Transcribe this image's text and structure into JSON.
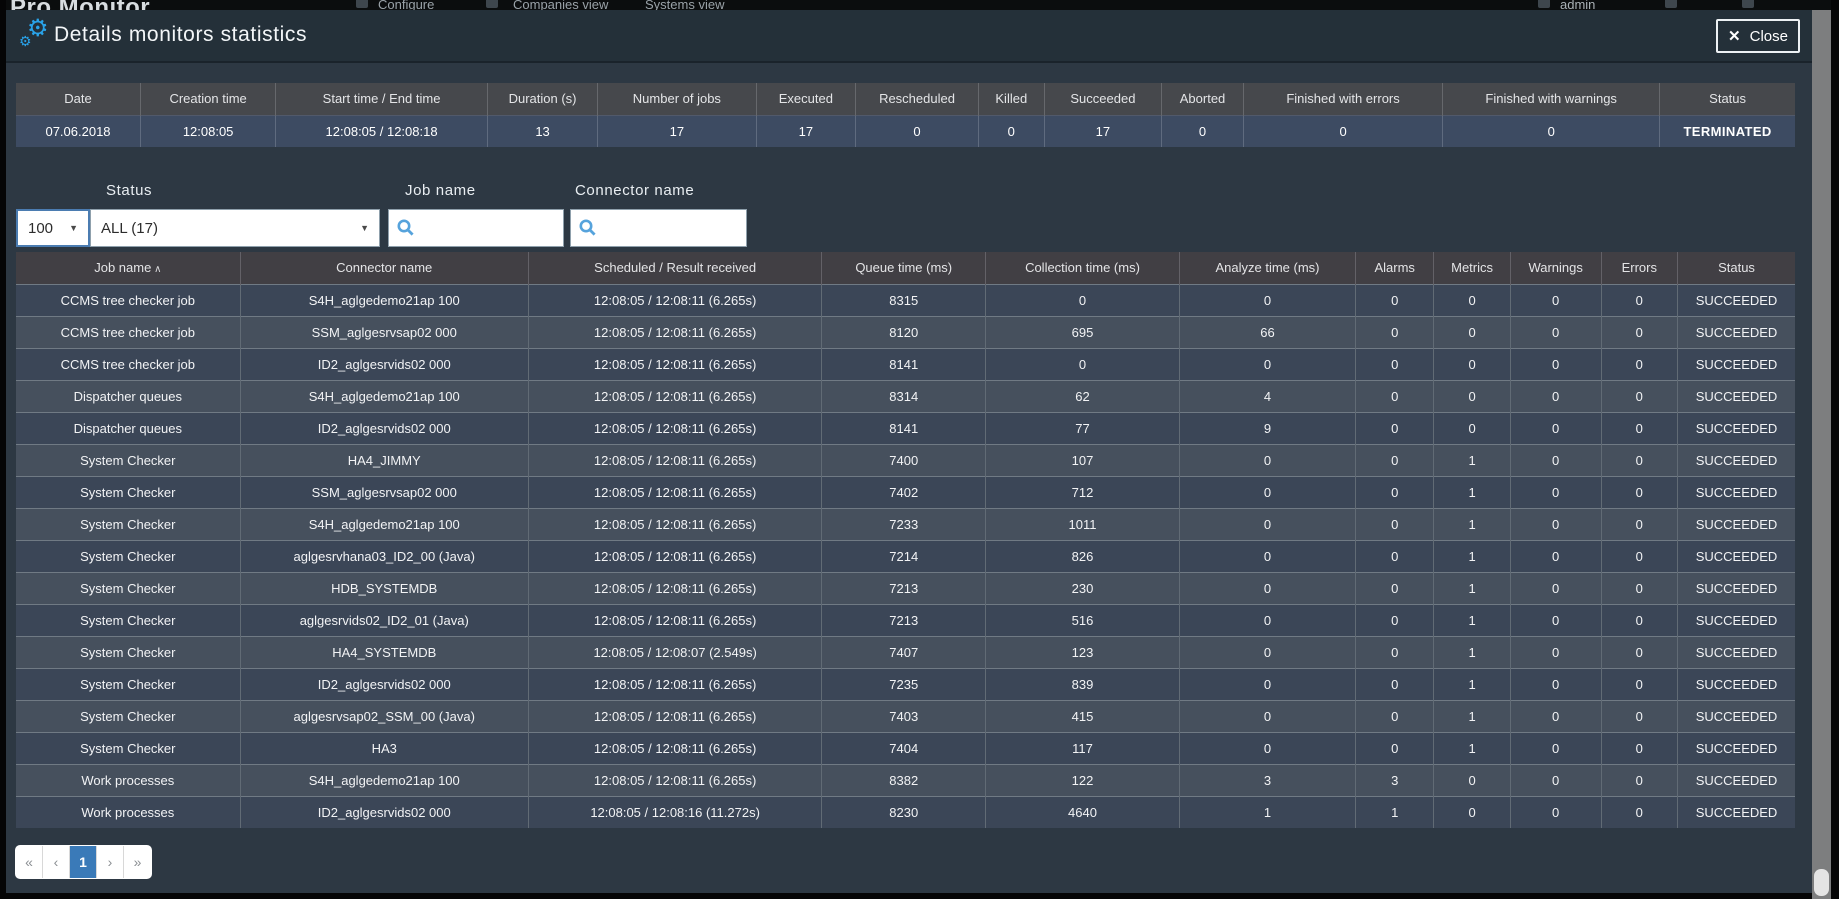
{
  "backdrop": {
    "brand": "Pro.Monitor",
    "nav": {
      "configure": "Configure",
      "companies_view": "Companies view",
      "systems_view": "Systems view"
    },
    "user": "admin"
  },
  "modal": {
    "title": "Details monitors statistics",
    "close_label": "Close",
    "close_icon": "✕"
  },
  "summary_table": {
    "columns": [
      "Date",
      "Creation time",
      "Start time / End time",
      "Duration (s)",
      "Number of jobs",
      "Executed",
      "Rescheduled",
      "Killed",
      "Succeeded",
      "Aborted",
      "Finished with errors",
      "Finished with warnings",
      "Status"
    ],
    "rows": [
      [
        "07.06.2018",
        "12:08:05",
        "12:08:05 / 12:08:18",
        "13",
        "17",
        "17",
        "0",
        "0",
        "17",
        "0",
        "0",
        "0",
        "TERMINATED"
      ]
    ]
  },
  "filters": {
    "page_size_value": "100",
    "status_label": "Status",
    "status_value": "ALL (17)",
    "job_name_label": "Job name",
    "job_name_value": "",
    "connector_name_label": "Connector name",
    "connector_name_value": ""
  },
  "jobs_table": {
    "sort_indicator": "∧",
    "columns": [
      "Job name",
      "Connector name",
      "Scheduled / Result received",
      "Queue time (ms)",
      "Collection time (ms)",
      "Analyze time (ms)",
      "Alarms",
      "Metrics",
      "Warnings",
      "Errors",
      "Status"
    ],
    "rows": [
      [
        "CCMS tree checker job",
        "S4H_aglgedemo21ap 100",
        "12:08:05 / 12:08:11 (6.265s)",
        "8315",
        "0",
        "0",
        "0",
        "0",
        "0",
        "0",
        "SUCCEEDED"
      ],
      [
        "CCMS tree checker job",
        "SSM_aglgesrvsap02 000",
        "12:08:05 / 12:08:11 (6.265s)",
        "8120",
        "695",
        "66",
        "0",
        "0",
        "0",
        "0",
        "SUCCEEDED"
      ],
      [
        "CCMS tree checker job",
        "ID2_aglgesrvids02 000",
        "12:08:05 / 12:08:11 (6.265s)",
        "8141",
        "0",
        "0",
        "0",
        "0",
        "0",
        "0",
        "SUCCEEDED"
      ],
      [
        "Dispatcher queues",
        "S4H_aglgedemo21ap 100",
        "12:08:05 / 12:08:11 (6.265s)",
        "8314",
        "62",
        "4",
        "0",
        "0",
        "0",
        "0",
        "SUCCEEDED"
      ],
      [
        "Dispatcher queues",
        "ID2_aglgesrvids02 000",
        "12:08:05 / 12:08:11 (6.265s)",
        "8141",
        "77",
        "9",
        "0",
        "0",
        "0",
        "0",
        "SUCCEEDED"
      ],
      [
        "System Checker",
        "HA4_JIMMY",
        "12:08:05 / 12:08:11 (6.265s)",
        "7400",
        "107",
        "0",
        "0",
        "1",
        "0",
        "0",
        "SUCCEEDED"
      ],
      [
        "System Checker",
        "SSM_aglgesrvsap02 000",
        "12:08:05 / 12:08:11 (6.265s)",
        "7402",
        "712",
        "0",
        "0",
        "1",
        "0",
        "0",
        "SUCCEEDED"
      ],
      [
        "System Checker",
        "S4H_aglgedemo21ap 100",
        "12:08:05 / 12:08:11 (6.265s)",
        "7233",
        "1011",
        "0",
        "0",
        "1",
        "0",
        "0",
        "SUCCEEDED"
      ],
      [
        "System Checker",
        "aglgesrvhana03_ID2_00 (Java)",
        "12:08:05 / 12:08:11 (6.265s)",
        "7214",
        "826",
        "0",
        "0",
        "1",
        "0",
        "0",
        "SUCCEEDED"
      ],
      [
        "System Checker",
        "HDB_SYSTEMDB",
        "12:08:05 / 12:08:11 (6.265s)",
        "7213",
        "230",
        "0",
        "0",
        "1",
        "0",
        "0",
        "SUCCEEDED"
      ],
      [
        "System Checker",
        "aglgesrvids02_ID2_01 (Java)",
        "12:08:05 / 12:08:11 (6.265s)",
        "7213",
        "516",
        "0",
        "0",
        "1",
        "0",
        "0",
        "SUCCEEDED"
      ],
      [
        "System Checker",
        "HA4_SYSTEMDB",
        "12:08:05 / 12:08:07 (2.549s)",
        "7407",
        "123",
        "0",
        "0",
        "1",
        "0",
        "0",
        "SUCCEEDED"
      ],
      [
        "System Checker",
        "ID2_aglgesrvids02 000",
        "12:08:05 / 12:08:11 (6.265s)",
        "7235",
        "839",
        "0",
        "0",
        "1",
        "0",
        "0",
        "SUCCEEDED"
      ],
      [
        "System Checker",
        "aglgesrvsap02_SSM_00 (Java)",
        "12:08:05 / 12:08:11 (6.265s)",
        "7403",
        "415",
        "0",
        "0",
        "1",
        "0",
        "0",
        "SUCCEEDED"
      ],
      [
        "System Checker",
        "HA3",
        "12:08:05 / 12:08:11 (6.265s)",
        "7404",
        "117",
        "0",
        "0",
        "1",
        "0",
        "0",
        "SUCCEEDED"
      ],
      [
        "Work processes",
        "S4H_aglgedemo21ap 100",
        "12:08:05 / 12:08:11 (6.265s)",
        "8382",
        "122",
        "3",
        "3",
        "0",
        "0",
        "0",
        "SUCCEEDED"
      ],
      [
        "Work processes",
        "ID2_aglgesrvids02 000",
        "12:08:05 / 12:08:16 (11.272s)",
        "8230",
        "4640",
        "1",
        "1",
        "0",
        "0",
        "0",
        "SUCCEEDED"
      ]
    ]
  },
  "pagination": {
    "first": "«",
    "prev": "‹",
    "page": "1",
    "next": "›",
    "last": "»"
  },
  "colors": {
    "title_icon_blue": "#29a3ea",
    "search_icon_blue": "#56a3dc",
    "active_page_blue": "#3a7ab8",
    "summary_row_blue": "#3d4b62",
    "modal_background": "#2d3843"
  }
}
